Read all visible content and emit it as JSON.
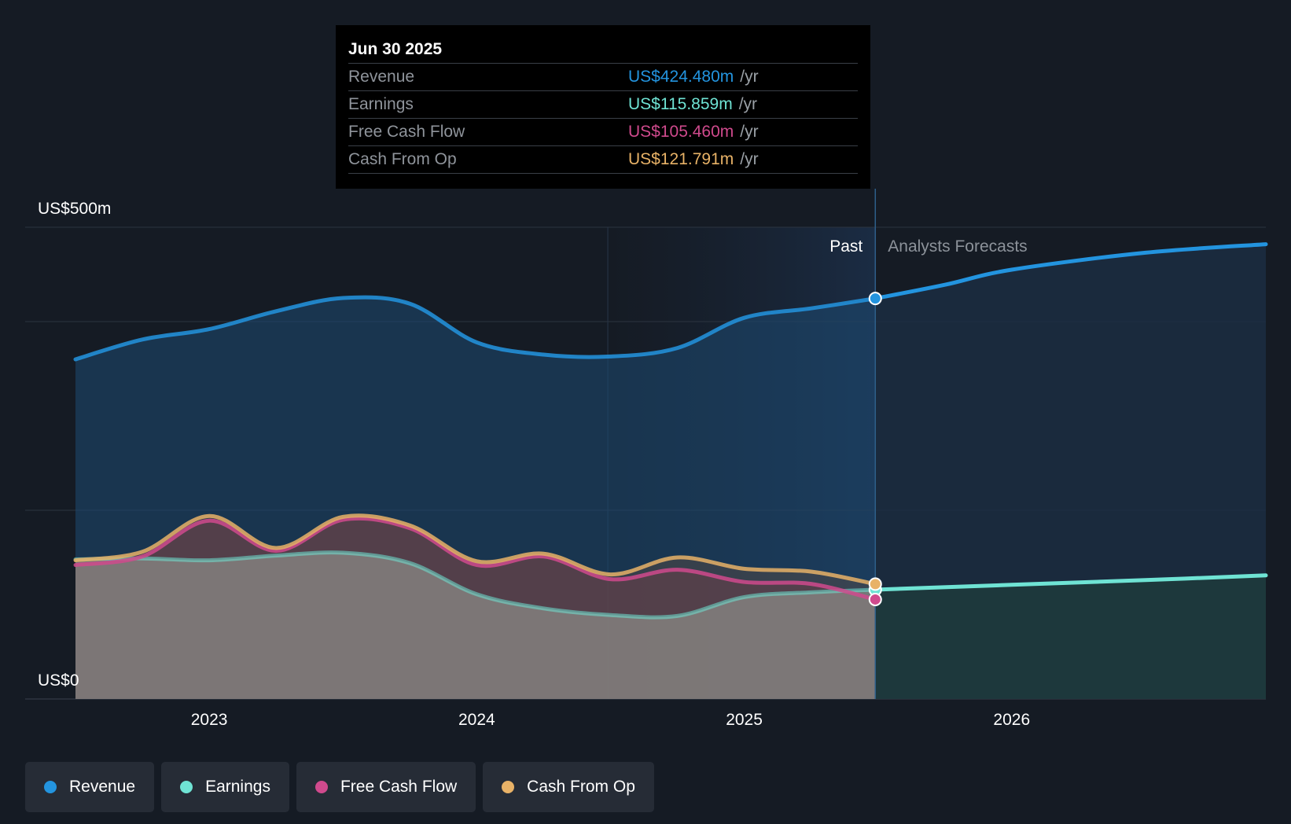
{
  "chart_data": {
    "type": "area",
    "y_axis": {
      "min": 0,
      "max": 500,
      "top_label": "US$500m",
      "bottom_label": "US$0",
      "gridlines": [
        200,
        400,
        500
      ]
    },
    "x_axis": {
      "min": 2022.5,
      "max": 2026.95,
      "ticks": [
        {
          "value": 2023,
          "label": "2023"
        },
        {
          "value": 2024,
          "label": "2024"
        },
        {
          "value": 2025,
          "label": "2025"
        },
        {
          "value": 2026,
          "label": "2026"
        }
      ]
    },
    "past_label": "Past",
    "forecast_label": "Analysts Forecasts",
    "divider_x": 2025.49,
    "highlight_start_x": 2024.49,
    "series": [
      {
        "name": "Revenue",
        "color": "#2394df",
        "values": [
          [
            2022.5,
            360
          ],
          [
            2022.75,
            381
          ],
          [
            2023.0,
            392
          ],
          [
            2023.25,
            411
          ],
          [
            2023.5,
            425
          ],
          [
            2023.75,
            419
          ],
          [
            2024.0,
            378
          ],
          [
            2024.25,
            365
          ],
          [
            2024.5,
            363
          ],
          [
            2024.75,
            372
          ],
          [
            2025.0,
            404
          ],
          [
            2025.25,
            414
          ],
          [
            2025.49,
            424.48
          ],
          [
            2025.75,
            439
          ],
          [
            2026.0,
            455
          ],
          [
            2026.5,
            473
          ],
          [
            2026.95,
            482
          ]
        ]
      },
      {
        "name": "Earnings",
        "color": "#6fe3d4",
        "values": [
          [
            2022.5,
            148
          ],
          [
            2022.75,
            149
          ],
          [
            2023.0,
            147
          ],
          [
            2023.25,
            152
          ],
          [
            2023.5,
            155
          ],
          [
            2023.75,
            144
          ],
          [
            2024.0,
            111
          ],
          [
            2024.25,
            96
          ],
          [
            2024.5,
            89
          ],
          [
            2024.75,
            88
          ],
          [
            2025.0,
            108
          ],
          [
            2025.25,
            113
          ],
          [
            2025.49,
            115.859
          ],
          [
            2026.0,
            121
          ],
          [
            2026.5,
            126
          ],
          [
            2026.95,
            131
          ]
        ]
      },
      {
        "name": "Free Cash Flow",
        "color": "#d04a8d",
        "values": [
          [
            2022.5,
            142
          ],
          [
            2022.75,
            151
          ],
          [
            2023.0,
            189
          ],
          [
            2023.25,
            157
          ],
          [
            2023.5,
            190
          ],
          [
            2023.75,
            181
          ],
          [
            2024.0,
            142
          ],
          [
            2024.25,
            151
          ],
          [
            2024.5,
            127
          ],
          [
            2024.75,
            137
          ],
          [
            2025.0,
            124
          ],
          [
            2025.25,
            122
          ],
          [
            2025.49,
            105.46
          ]
        ]
      },
      {
        "name": "Cash From Op",
        "color": "#e8b267",
        "values": [
          [
            2022.5,
            147
          ],
          [
            2022.75,
            156
          ],
          [
            2023.0,
            194
          ],
          [
            2023.25,
            160
          ],
          [
            2023.5,
            193
          ],
          [
            2023.75,
            184
          ],
          [
            2024.0,
            146
          ],
          [
            2024.25,
            154
          ],
          [
            2024.5,
            132
          ],
          [
            2024.75,
            150
          ],
          [
            2025.0,
            138
          ],
          [
            2025.25,
            135
          ],
          [
            2025.49,
            121.791
          ]
        ]
      }
    ]
  },
  "tooltip": {
    "date": "Jun 30 2025",
    "unit": "/yr",
    "rows": [
      {
        "label": "Revenue",
        "value": "US$424.480m",
        "color": "#2394df"
      },
      {
        "label": "Earnings",
        "value": "US$115.859m",
        "color": "#6fe3d4"
      },
      {
        "label": "Free Cash Flow",
        "value": "US$105.460m",
        "color": "#d04a8d"
      },
      {
        "label": "Cash From Op",
        "value": "US$121.791m",
        "color": "#e8b267"
      }
    ]
  },
  "legend": [
    {
      "label": "Revenue",
      "color": "#2394df"
    },
    {
      "label": "Earnings",
      "color": "#6fe3d4"
    },
    {
      "label": "Free Cash Flow",
      "color": "#d04a8d"
    },
    {
      "label": "Cash From Op",
      "color": "#e8b267"
    }
  ]
}
